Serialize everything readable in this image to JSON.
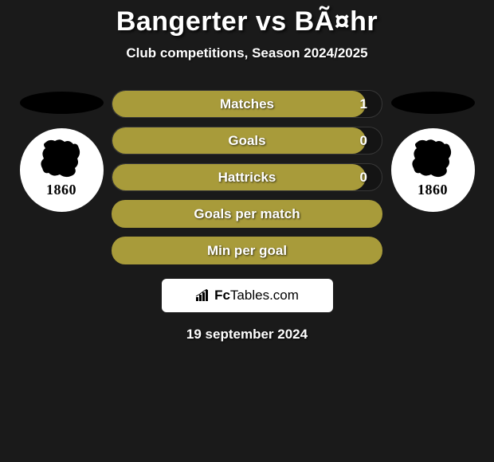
{
  "title": "Bangerter vs BÃ¤hr",
  "subtitle": "Club competitions, Season 2024/2025",
  "date": "19 september 2024",
  "footer_brand": {
    "prefix": "Fc",
    "suffix": "Tables.com"
  },
  "club_left": {
    "year": "1860"
  },
  "club_right": {
    "year": "1860"
  },
  "colors": {
    "bar_fill": "#a89b3a",
    "background": "#1a1a1a",
    "ellipse": "#000000",
    "badge_bg": "#ffffff",
    "text": "#ffffff"
  },
  "bars": [
    {
      "label": "Matches",
      "value": "1",
      "fill_pct": 94,
      "has_value": true
    },
    {
      "label": "Goals",
      "value": "0",
      "fill_pct": 94,
      "has_value": true
    },
    {
      "label": "Hattricks",
      "value": "0",
      "fill_pct": 94,
      "has_value": true
    },
    {
      "label": "Goals per match",
      "value": null,
      "fill_pct": 100,
      "has_value": false
    },
    {
      "label": "Min per goal",
      "value": null,
      "fill_pct": 100,
      "has_value": false
    }
  ]
}
